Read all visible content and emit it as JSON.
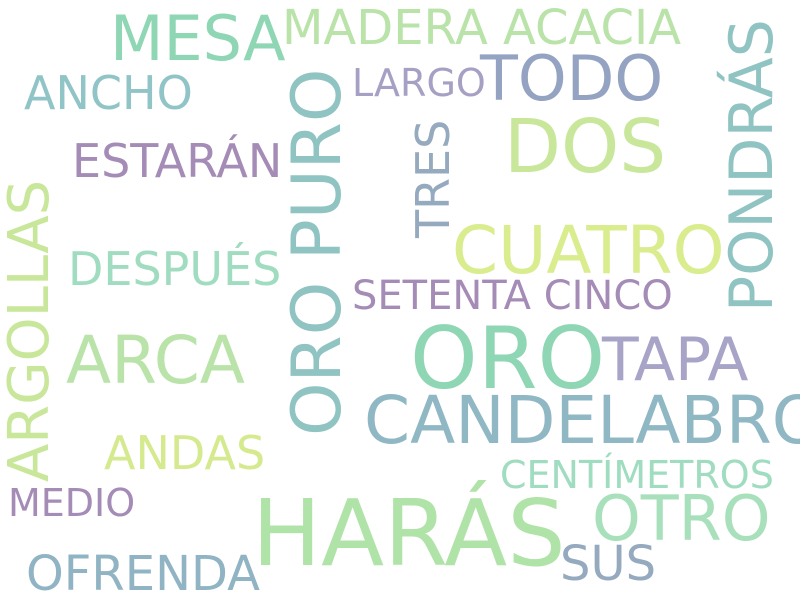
{
  "palette": {
    "green_light": "#b9e3a8",
    "green_teal": "#8fd6b4",
    "teal": "#90c4c2",
    "blue_grey": "#95a9bf",
    "lavender": "#a7a4c7",
    "purple": "#a58cb7",
    "yellow_green": "#d5ea8e",
    "mint": "#a0dcc0"
  },
  "words": [
    {
      "text": "MESA",
      "color": "#8fd6b4"
    },
    {
      "text": "MADERA ACACIA",
      "color": "#b9e3a8"
    },
    {
      "text": "TODO",
      "color": "#95a3c2"
    },
    {
      "text": "LARGO",
      "color": "#a7a0c4"
    },
    {
      "text": "ANCHO",
      "color": "#90c4c6"
    },
    {
      "text": "PONDRÁS",
      "color": "#90c4c2"
    },
    {
      "text": "DOS",
      "color": "#c9e79a"
    },
    {
      "text": "ESTARÁN",
      "color": "#a58cb7"
    },
    {
      "text": "ORO PURO",
      "color": "#90c4c2"
    },
    {
      "text": "TRES",
      "color": "#95a9bf"
    },
    {
      "text": "ARGOLLAS",
      "color": "#c9e79a"
    },
    {
      "text": "CUATRO",
      "color": "#d9ec8e"
    },
    {
      "text": "DESPUÉS",
      "color": "#a0dcc0"
    },
    {
      "text": "SETENTA CINCO",
      "color": "#a58cb7"
    },
    {
      "text": "ARCA",
      "color": "#b9e3a8"
    },
    {
      "text": "ORO",
      "color": "#8fd6b4"
    },
    {
      "text": "TAPA",
      "color": "#a7a4c7"
    },
    {
      "text": "CANDELABRO",
      "color": "#90b8c4"
    },
    {
      "text": "ANDAS",
      "color": "#d5ea8e"
    },
    {
      "text": "CENTÍMETROS",
      "color": "#a0dcc0"
    },
    {
      "text": "MEDIO",
      "color": "#a58cb7"
    },
    {
      "text": "HARÁS",
      "color": "#b0e3a8"
    },
    {
      "text": "OTRO",
      "color": "#a8e0bc"
    },
    {
      "text": "OFRENDA",
      "color": "#90b4c4"
    },
    {
      "text": "SUS",
      "color": "#95a9bf"
    }
  ]
}
